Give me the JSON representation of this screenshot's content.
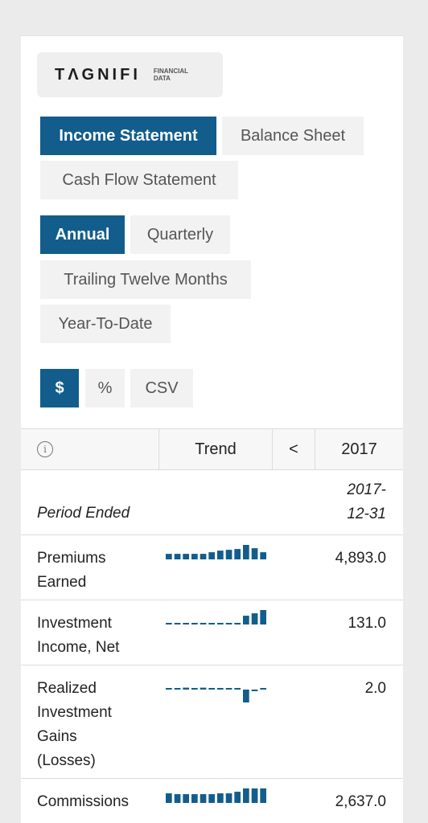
{
  "logo": {
    "word": "TΛGNIFI",
    "sub_line1": "FINANCIAL",
    "sub_line2": "DATA"
  },
  "statement_tabs": [
    {
      "label": "Income Statement",
      "active": true
    },
    {
      "label": "Balance Sheet",
      "active": false
    },
    {
      "label": "Cash Flow Statement",
      "active": false
    }
  ],
  "period_tabs": [
    {
      "label": "Annual",
      "active": true
    },
    {
      "label": "Quarterly",
      "active": false
    },
    {
      "label": "Trailing Twelve Months",
      "active": false
    },
    {
      "label": "Year-To-Date",
      "active": false
    }
  ],
  "format_tabs": [
    {
      "label": "$",
      "active": true
    },
    {
      "label": "%",
      "active": false
    },
    {
      "label": "CSV",
      "active": false
    }
  ],
  "table": {
    "header": {
      "info_icon": "info-icon",
      "trend": "Trend",
      "prev": "<",
      "year": "2017"
    },
    "period_label": "Period Ended",
    "period_value_line1": "2017-",
    "period_value_line2": "12-31",
    "rows": [
      {
        "label_lines": [
          "Premiums",
          "Earned"
        ],
        "value": "4,893.0",
        "spark": [
          0.35,
          0.35,
          0.35,
          0.35,
          0.35,
          0.45,
          0.55,
          0.6,
          0.65,
          1.0,
          0.7,
          0.45
        ]
      },
      {
        "label_lines": [
          "Investment",
          "Income, Net"
        ],
        "value": "131.0",
        "spark": [
          0.08,
          0.08,
          0.08,
          0.08,
          0.08,
          0.08,
          0.08,
          0.08,
          0.08,
          0.55,
          0.7,
          1.0
        ]
      },
      {
        "label_lines": [
          "Realized",
          "Investment",
          "Gains",
          "(Losses)"
        ],
        "value": "2.0",
        "spark": [
          0.05,
          0.05,
          0.12,
          0.05,
          0.12,
          0.05,
          0.05,
          0.05,
          0.05,
          -0.9,
          -0.05,
          0.08
        ]
      },
      {
        "label_lines": [
          "Commissions"
        ],
        "value": "2,637.0",
        "spark": [
          0.6,
          0.55,
          0.55,
          0.55,
          0.55,
          0.55,
          0.6,
          0.6,
          0.7,
          1.0,
          1.0,
          1.0
        ]
      }
    ]
  },
  "colors": {
    "accent": "#125d8c",
    "button_bg": "#f2f2f2",
    "page_bg": "#ebebeb"
  }
}
